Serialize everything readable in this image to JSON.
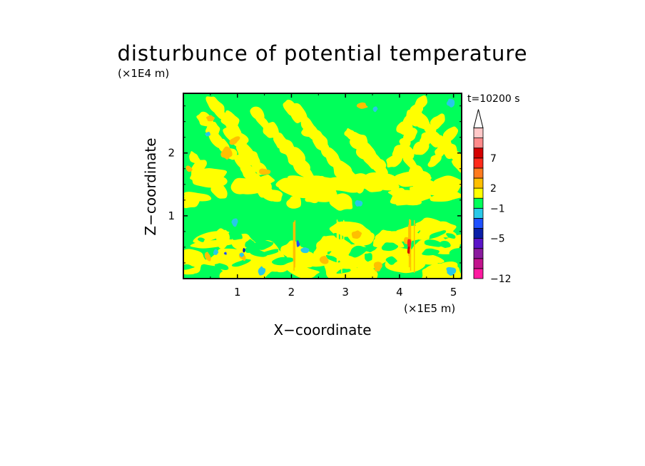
{
  "chart_data": {
    "type": "heatmap",
    "title": "disturbunce of potential temperature",
    "xlabel": "X−coordinate",
    "ylabel": "Z−coordinate",
    "x_unit": "(×1E5 m)",
    "y_unit": "(×1E4 m)",
    "time_label": "t=10200 s",
    "xlim": [
      0,
      5.15
    ],
    "ylim": [
      0,
      2.95
    ],
    "x_ticks": [
      {
        "v": 1,
        "label": "1"
      },
      {
        "v": 2,
        "label": "2"
      },
      {
        "v": 3,
        "label": "3"
      },
      {
        "v": 4,
        "label": "4"
      },
      {
        "v": 5,
        "label": "5"
      }
    ],
    "y_ticks": [
      {
        "v": 1,
        "label": "1"
      },
      {
        "v": 2,
        "label": "2"
      }
    ],
    "colorbar": {
      "levels_bottom_to_top": [
        "#ff1aa0",
        "#c2138c",
        "#8a1a9e",
        "#5a14c8",
        "#0a1ea8",
        "#1e50ff",
        "#28c8e8",
        "#00ff5a",
        "#ffff00",
        "#ffbf00",
        "#ff7a1e",
        "#ff2a1a",
        "#d40000",
        "#ff8a8a",
        "#ffc8c8"
      ],
      "extend_top": true,
      "labels": [
        {
          "value": -12,
          "text": "−12",
          "level_edge": 0
        },
        {
          "value": -5,
          "text": "−5",
          "level_edge": 4
        },
        {
          "value": -1,
          "text": "−1",
          "level_edge": 7
        },
        {
          "value": 2,
          "text": "2",
          "level_edge": 9
        },
        {
          "value": 7,
          "text": "7",
          "level_edge": 12
        }
      ]
    },
    "field_description": [
      {
        "level": "green",
        "meaning": "near-zero disturbance (background)"
      },
      {
        "level": "yellow",
        "meaning": "small positive disturbance"
      },
      {
        "level": "orange",
        "meaning": "moderate positive disturbance"
      },
      {
        "level": "cyan",
        "meaning": "small negative disturbance"
      },
      {
        "level": "blue/red",
        "meaning": "localized extremes near x=2.1 and x=4.2"
      }
    ],
    "grid": false
  }
}
